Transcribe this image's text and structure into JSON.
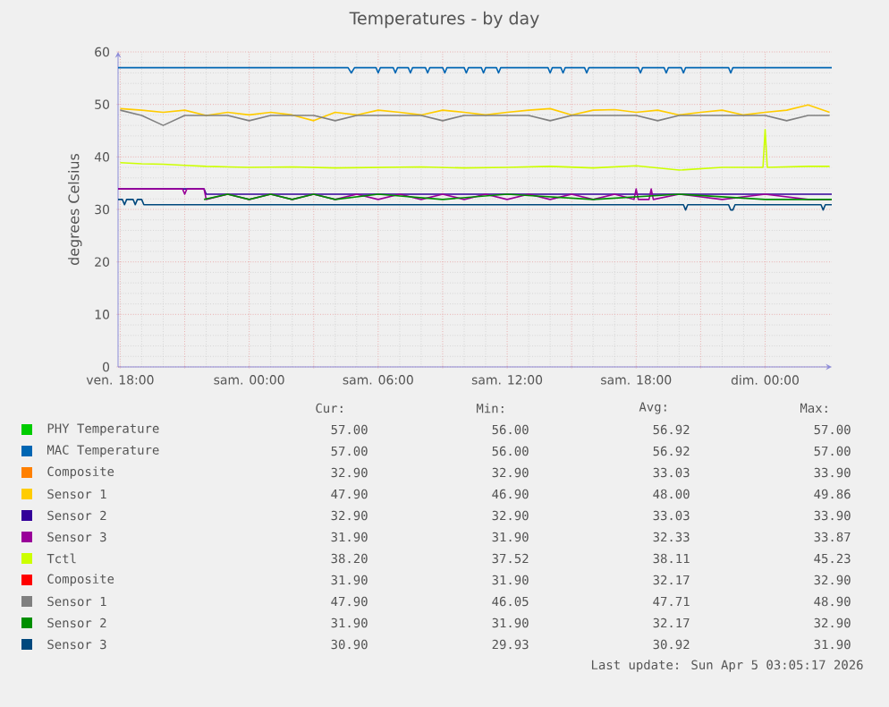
{
  "chart_data": {
    "type": "line",
    "title": "Temperatures - by day",
    "ylabel": "degrees Celsius",
    "xlim": [
      "2026-04-03T17:54",
      "2026-04-05T03:06"
    ],
    "ylim": [
      0,
      60
    ],
    "xticks": [
      {
        "value": "2026-04-03T18:00",
        "label": "ven. 18:00"
      },
      {
        "value": "2026-04-03T21:00",
        "label": null
      },
      {
        "value": "2026-04-04T00:00",
        "label": "sam. 00:00"
      },
      {
        "value": "2026-04-04T03:00",
        "label": null
      },
      {
        "value": "2026-04-04T06:00",
        "label": "sam. 06:00"
      },
      {
        "value": "2026-04-04T09:00",
        "label": null
      },
      {
        "value": "2026-04-04T12:00",
        "label": "sam. 12:00"
      },
      {
        "value": "2026-04-04T15:00",
        "label": null
      },
      {
        "value": "2026-04-04T18:00",
        "label": "sam. 18:00"
      },
      {
        "value": "2026-04-04T21:00",
        "label": null
      },
      {
        "value": "2026-04-05T00:00",
        "label": "dim. 00:00"
      }
    ],
    "yticks": [
      0,
      10,
      20,
      30,
      40,
      50,
      60
    ],
    "grid": true,
    "legend": "bottom",
    "series": [
      {
        "name": "PHY Temperature",
        "color": "#00cc00"
      },
      {
        "name": "MAC Temperature",
        "color": "#0066b3",
        "x": [
          "2026-04-03T17:54",
          "2026-04-04T04:36",
          "2026-04-04T04:45",
          "2026-04-04T04:54",
          "2026-04-04T05:54",
          "2026-04-04T06:00",
          "2026-04-04T06:06",
          "2026-04-04T06:42",
          "2026-04-04T06:48",
          "2026-04-04T06:54",
          "2026-04-04T07:24",
          "2026-04-04T07:30",
          "2026-04-04T07:36",
          "2026-04-04T08:12",
          "2026-04-04T08:18",
          "2026-04-04T08:24",
          "2026-04-04T09:00",
          "2026-04-04T09:06",
          "2026-04-04T09:12",
          "2026-04-04T10:00",
          "2026-04-04T10:06",
          "2026-04-04T10:12",
          "2026-04-04T10:48",
          "2026-04-04T10:54",
          "2026-04-04T11:00",
          "2026-04-04T11:30",
          "2026-04-04T11:36",
          "2026-04-04T11:42",
          "2026-04-04T13:54",
          "2026-04-04T14:00",
          "2026-04-04T14:06",
          "2026-04-04T14:30",
          "2026-04-04T14:36",
          "2026-04-04T14:42",
          "2026-04-04T15:36",
          "2026-04-04T15:42",
          "2026-04-04T15:48",
          "2026-04-04T18:06",
          "2026-04-04T18:12",
          "2026-04-04T18:18",
          "2026-04-04T19:18",
          "2026-04-04T19:24",
          "2026-04-04T19:30",
          "2026-04-04T20:06",
          "2026-04-04T20:12",
          "2026-04-04T20:18",
          "2026-04-04T22:18",
          "2026-04-04T22:24",
          "2026-04-04T22:30",
          "2026-04-05T03:06"
        ],
        "values": [
          57,
          57,
          56,
          57,
          57,
          56,
          57,
          57,
          56,
          57,
          57,
          56,
          57,
          57,
          56,
          57,
          57,
          56,
          57,
          57,
          56,
          57,
          57,
          56,
          57,
          57,
          56,
          57,
          57,
          56,
          57,
          57,
          56,
          57,
          57,
          56,
          57,
          57,
          56,
          57,
          57,
          56,
          57,
          57,
          56,
          57,
          57,
          56,
          57,
          57
        ]
      },
      {
        "name": "Composite",
        "color": "#ff8000"
      },
      {
        "name": "Sensor 1",
        "color": "#ffcc00",
        "x": [
          "2026-04-03T18:00",
          "2026-04-03T19:00",
          "2026-04-03T20:00",
          "2026-04-03T21:00",
          "2026-04-03T22:00",
          "2026-04-03T23:00",
          "2026-04-04T00:00",
          "2026-04-04T01:00",
          "2026-04-04T02:00",
          "2026-04-04T03:00",
          "2026-04-04T04:00",
          "2026-04-04T05:00",
          "2026-04-04T06:00",
          "2026-04-04T07:00",
          "2026-04-04T08:00",
          "2026-04-04T09:00",
          "2026-04-04T10:00",
          "2026-04-04T11:00",
          "2026-04-04T12:00",
          "2026-04-04T13:00",
          "2026-04-04T14:00",
          "2026-04-04T15:00",
          "2026-04-04T16:00",
          "2026-04-04T17:00",
          "2026-04-04T18:00",
          "2026-04-04T19:00",
          "2026-04-04T20:00",
          "2026-04-04T21:00",
          "2026-04-04T22:00",
          "2026-04-04T23:00",
          "2026-04-05T00:00",
          "2026-04-05T01:00",
          "2026-04-05T02:00",
          "2026-04-05T03:00"
        ],
        "values": [
          49.2,
          48.9,
          48.5,
          48.9,
          47.9,
          48.5,
          48.0,
          48.5,
          48.0,
          46.9,
          48.5,
          48.0,
          48.9,
          48.5,
          48.0,
          48.9,
          48.5,
          48.0,
          48.5,
          48.9,
          49.2,
          48.0,
          48.9,
          49.0,
          48.5,
          48.9,
          48.0,
          48.5,
          48.9,
          48.0,
          48.5,
          48.9,
          49.9,
          48.5
        ]
      },
      {
        "name": "Sensor 2",
        "color": "#330099",
        "x": [
          "2026-04-03T17:54",
          "2026-04-03T21:54",
          "2026-04-03T22:00",
          "2026-04-05T03:06"
        ],
        "values": [
          33.9,
          33.9,
          32.9,
          32.9
        ]
      },
      {
        "name": "Sensor 3",
        "color": "#990099",
        "x": [
          "2026-04-03T17:54",
          "2026-04-03T20:54",
          "2026-04-03T21:00",
          "2026-04-03T21:06",
          "2026-04-03T21:54",
          "2026-04-03T22:00",
          "2026-04-03T23:00",
          "2026-04-04T00:00",
          "2026-04-04T01:00",
          "2026-04-04T02:00",
          "2026-04-04T03:00",
          "2026-04-04T04:00",
          "2026-04-04T05:00",
          "2026-04-04T06:00",
          "2026-04-04T07:00",
          "2026-04-04T08:00",
          "2026-04-04T09:00",
          "2026-04-04T10:00",
          "2026-04-04T11:00",
          "2026-04-04T12:00",
          "2026-04-04T13:00",
          "2026-04-04T14:00",
          "2026-04-04T15:00",
          "2026-04-04T16:00",
          "2026-04-04T17:00",
          "2026-04-04T17:54",
          "2026-04-04T18:00",
          "2026-04-04T18:06",
          "2026-04-04T18:36",
          "2026-04-04T18:42",
          "2026-04-04T18:48",
          "2026-04-04T20:00",
          "2026-04-04T22:00",
          "2026-04-05T00:00",
          "2026-04-05T02:00",
          "2026-04-05T03:06"
        ],
        "values": [
          33.9,
          33.9,
          32.9,
          33.9,
          33.9,
          31.9,
          32.9,
          31.9,
          32.9,
          31.9,
          32.9,
          31.9,
          32.9,
          31.9,
          32.9,
          31.9,
          32.9,
          31.9,
          32.9,
          31.9,
          32.9,
          31.9,
          32.9,
          31.9,
          32.9,
          31.9,
          33.9,
          31.9,
          31.9,
          33.9,
          31.9,
          32.9,
          31.9,
          32.9,
          31.9,
          31.9
        ]
      },
      {
        "name": "Tctl",
        "color": "#ccff00",
        "x": [
          "2026-04-03T18:00",
          "2026-04-03T19:00",
          "2026-04-03T20:00",
          "2026-04-03T21:00",
          "2026-04-03T22:00",
          "2026-04-04T00:00",
          "2026-04-04T02:00",
          "2026-04-04T04:00",
          "2026-04-04T06:00",
          "2026-04-04T08:00",
          "2026-04-04T10:00",
          "2026-04-04T12:00",
          "2026-04-04T14:00",
          "2026-04-04T16:00",
          "2026-04-04T18:00",
          "2026-04-04T20:00",
          "2026-04-04T22:00",
          "2026-04-04T23:54",
          "2026-04-05T00:00",
          "2026-04-05T00:06",
          "2026-04-05T02:00",
          "2026-04-05T03:00"
        ],
        "values": [
          38.9,
          38.7,
          38.6,
          38.4,
          38.2,
          38.0,
          38.1,
          37.9,
          38.0,
          38.1,
          37.9,
          38.0,
          38.2,
          37.9,
          38.3,
          37.5,
          38.0,
          38.0,
          45.2,
          38.0,
          38.2,
          38.2
        ]
      },
      {
        "name": "Composite",
        "color": "#ff0000"
      },
      {
        "name": "Sensor 1",
        "color": "#808080",
        "x": [
          "2026-04-03T18:00",
          "2026-04-03T19:00",
          "2026-04-03T20:00",
          "2026-04-03T21:00",
          "2026-04-03T22:00",
          "2026-04-03T23:00",
          "2026-04-04T00:00",
          "2026-04-04T01:00",
          "2026-04-04T02:00",
          "2026-04-04T03:00",
          "2026-04-04T04:00",
          "2026-04-04T05:00",
          "2026-04-04T06:00",
          "2026-04-04T07:00",
          "2026-04-04T08:00",
          "2026-04-04T09:00",
          "2026-04-04T10:00",
          "2026-04-04T11:00",
          "2026-04-04T12:00",
          "2026-04-04T13:00",
          "2026-04-04T14:00",
          "2026-04-04T15:00",
          "2026-04-04T16:00",
          "2026-04-04T17:00",
          "2026-04-04T18:00",
          "2026-04-04T19:00",
          "2026-04-04T20:00",
          "2026-04-04T21:00",
          "2026-04-04T22:00",
          "2026-04-04T23:00",
          "2026-04-05T00:00",
          "2026-04-05T01:00",
          "2026-04-05T02:00",
          "2026-04-05T03:00"
        ],
        "values": [
          48.9,
          47.9,
          46.0,
          47.9,
          47.9,
          47.9,
          46.9,
          47.9,
          47.9,
          47.9,
          46.9,
          47.9,
          47.9,
          47.9,
          47.9,
          46.9,
          47.9,
          47.9,
          47.9,
          47.9,
          46.9,
          47.9,
          47.9,
          47.9,
          47.9,
          46.9,
          47.9,
          47.9,
          47.9,
          47.9,
          47.9,
          46.9,
          47.9,
          47.9
        ]
      },
      {
        "name": "Sensor 2",
        "color": "#008f00",
        "x": [
          "2026-04-03T21:54",
          "2026-04-03T23:00",
          "2026-04-04T00:00",
          "2026-04-04T01:00",
          "2026-04-04T02:00",
          "2026-04-04T03:00",
          "2026-04-04T04:00",
          "2026-04-04T06:00",
          "2026-04-04T09:00",
          "2026-04-04T12:00",
          "2026-04-04T16:00",
          "2026-04-04T20:00",
          "2026-04-05T00:00",
          "2026-04-05T03:06"
        ],
        "values": [
          31.9,
          32.9,
          31.9,
          32.9,
          31.9,
          32.9,
          31.9,
          32.9,
          31.9,
          32.9,
          31.9,
          32.9,
          31.9,
          31.9
        ]
      },
      {
        "name": "Sensor 3",
        "color": "#00487d",
        "x": [
          "2026-04-03T17:54",
          "2026-04-03T18:06",
          "2026-04-03T18:12",
          "2026-04-03T18:18",
          "2026-04-03T18:36",
          "2026-04-03T18:42",
          "2026-04-03T18:48",
          "2026-04-03T19:00",
          "2026-04-03T19:06",
          "2026-04-04T20:12",
          "2026-04-04T20:18",
          "2026-04-04T20:24",
          "2026-04-04T22:18",
          "2026-04-04T22:24",
          "2026-04-04T22:30",
          "2026-04-04T22:36",
          "2026-04-05T02:36",
          "2026-04-05T02:42",
          "2026-04-05T02:48",
          "2026-04-05T03:06"
        ],
        "values": [
          31.9,
          31.9,
          30.9,
          31.9,
          31.9,
          30.9,
          31.9,
          31.9,
          30.9,
          30.9,
          29.9,
          30.9,
          30.9,
          29.9,
          29.9,
          30.9,
          30.9,
          29.9,
          30.9,
          30.9
        ]
      }
    ],
    "annotations": [
      "Cur:",
      "Min:",
      "Avg:",
      "Max:",
      "57.00",
      "56.00",
      "56.92",
      "57.00",
      "57.00",
      "56.00",
      "56.92",
      "57.00",
      "32.90",
      "32.90",
      "33.03",
      "33.90",
      "47.90",
      "46.90",
      "48.00",
      "49.86",
      "32.90",
      "32.90",
      "33.03",
      "33.90",
      "31.90",
      "31.90",
      "32.33",
      "33.87",
      "38.20",
      "37.52",
      "38.11",
      "45.23",
      "31.90",
      "31.90",
      "32.17",
      "32.90",
      "47.90",
      "46.05",
      "47.71",
      "48.90",
      "31.90",
      "31.90",
      "32.17",
      "32.90",
      "30.90",
      "29.93",
      "30.92",
      "31.90",
      "Last update: Sun Apr 5 03:05:17 2026"
    ]
  }
}
